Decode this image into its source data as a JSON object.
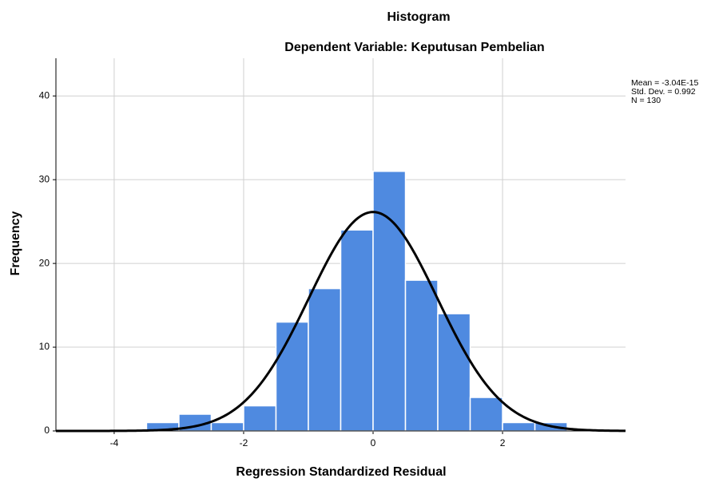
{
  "chart_data": {
    "type": "histogram",
    "title": "Histogram",
    "subtitle": "Dependent Variable: Keputusan Pembelian",
    "x_label": "Regression Standardized Residual",
    "y_label": "Frequency",
    "bins": [
      -3.5,
      -3.0,
      -2.5,
      -2.0,
      -1.5,
      -1.0,
      -0.5,
      0.0,
      0.5,
      1.0,
      1.5,
      2.0,
      2.5,
      3.0
    ],
    "values": [
      1,
      2,
      1,
      3,
      13,
      17,
      24,
      31,
      18,
      14,
      4,
      1,
      1
    ],
    "color": "#4f8ae0",
    "curve_color": "#000000",
    "stats": [
      {
        "value": -3.04e-15,
        "label": "Mean = -3.04E-15"
      },
      {
        "value": 0.992,
        "label": "Std. Dev. = 0.992"
      },
      {
        "value": 130,
        "label": "N = 130"
      }
    ],
    "xlim": [
      -4.9,
      3.9
    ],
    "ylim": [
      0,
      44.5
    ],
    "xticks": [
      -4,
      -2,
      0,
      2
    ],
    "yticks": [
      0,
      10,
      20,
      30,
      40
    ],
    "grid": true
  }
}
